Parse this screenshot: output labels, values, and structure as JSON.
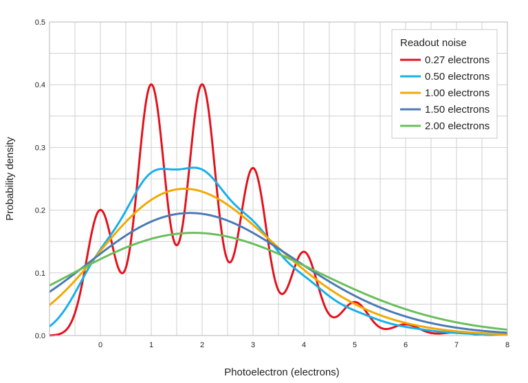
{
  "chart_data": {
    "type": "line",
    "xlabel": "Photoelectron (electrons)",
    "ylabel": "Probability density",
    "xlim": [
      -1,
      8
    ],
    "ylim": [
      0,
      0.5
    ],
    "x_ticks": [
      "0",
      "1",
      "2",
      "3",
      "4",
      "5",
      "6",
      "7",
      "8"
    ],
    "y_ticks": [
      "0.0",
      "0.1",
      "0.2",
      "0.3",
      "0.4",
      "0.5"
    ],
    "grid": true,
    "legend": {
      "title": "Readout noise",
      "placement": "top-right"
    },
    "poisson_mean": 2.0,
    "series": [
      {
        "name": "0.27 electrons",
        "sigma": 0.27,
        "color": "#e3111b"
      },
      {
        "name": "0.50 electrons",
        "sigma": 0.5,
        "color": "#16b0ea"
      },
      {
        "name": "1.00 electrons",
        "sigma": 1.0,
        "color": "#f2a900"
      },
      {
        "name": "1.50 electrons",
        "sigma": 1.5,
        "color": "#4a7ab5"
      },
      {
        "name": "2.00 electrons",
        "sigma": 2.0,
        "color": "#69be5a"
      }
    ]
  }
}
